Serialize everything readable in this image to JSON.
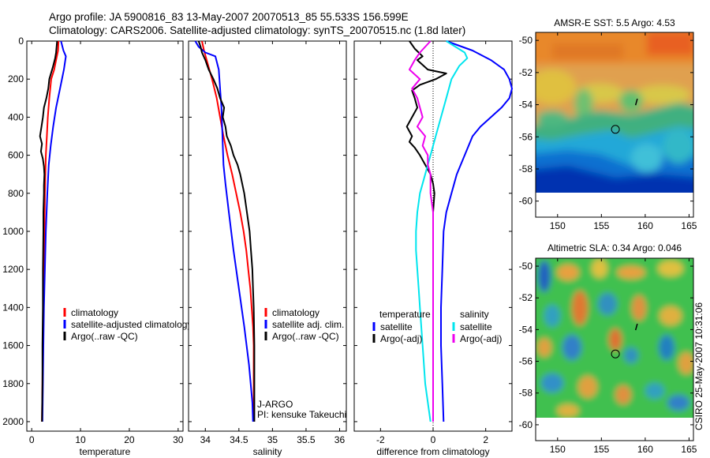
{
  "figure": {
    "title_line1": "Argo profile: JA 5900816_83 13-May-2007 20070513_85 55.533S 156.599E",
    "title_line2": "Climatology: CARS2006. Satellite-adjusted climatology: synTS_20070515.nc (1.8d later)",
    "credit": "CSIRO 25-May-2007 10:31:06",
    "float_info": [
      "J-ARGO",
      "PI: kensuke Takeuchi"
    ]
  },
  "colors": {
    "climatology": "#ff0000",
    "satellite": "#0000ff",
    "argo": "#000000",
    "salinity_satellite": "#00e5ee",
    "salinity_argo": "#ee00ee",
    "dotted_zero": "#000000"
  },
  "chart_data": [
    {
      "id": "temperature",
      "type": "line",
      "xlabel": "temperature",
      "ylabel": "",
      "xlim": [
        -1,
        31
      ],
      "ylim": [
        2050,
        0
      ],
      "xticks": [
        0,
        10,
        20,
        30
      ],
      "xticklabels": [
        "0",
        "10",
        "20",
        "30"
      ],
      "yticks": [
        0,
        200,
        400,
        600,
        800,
        1000,
        1200,
        1400,
        1600,
        1800,
        2000
      ],
      "yticklabels": [
        "0",
        "200",
        "400",
        "600",
        "800",
        "1000",
        "1200",
        "1400",
        "1600",
        "1800",
        "2000"
      ],
      "legend": [
        "climatology",
        "satellite-adjusted climatology",
        "Argo(..raw -QC)"
      ],
      "series": [
        {
          "key": "climatology",
          "points": [
            [
              5.5,
              0
            ],
            [
              5.4,
              50
            ],
            [
              5.0,
              100
            ],
            [
              4.6,
              150
            ],
            [
              4.0,
              200
            ],
            [
              3.6,
              300
            ],
            [
              3.3,
              400
            ],
            [
              3.1,
              500
            ],
            [
              2.9,
              600
            ],
            [
              2.7,
              800
            ],
            [
              2.6,
              1000
            ],
            [
              2.5,
              1200
            ],
            [
              2.4,
              1400
            ],
            [
              2.3,
              1600
            ],
            [
              2.2,
              1800
            ],
            [
              2.1,
              2000
            ]
          ]
        },
        {
          "key": "satellite",
          "points": [
            [
              6.0,
              0
            ],
            [
              6.5,
              50
            ],
            [
              7.0,
              80
            ],
            [
              6.6,
              150
            ],
            [
              5.8,
              250
            ],
            [
              5.0,
              350
            ],
            [
              4.4,
              450
            ],
            [
              3.9,
              550
            ],
            [
              3.5,
              650
            ],
            [
              3.2,
              800
            ],
            [
              2.9,
              1000
            ],
            [
              2.7,
              1200
            ],
            [
              2.5,
              1400
            ],
            [
              2.4,
              1600
            ],
            [
              2.3,
              1800
            ],
            [
              2.2,
              2000
            ]
          ]
        },
        {
          "key": "argo",
          "points": [
            [
              5.2,
              0
            ],
            [
              5.0,
              60
            ],
            [
              4.8,
              90
            ],
            [
              4.3,
              140
            ],
            [
              3.6,
              200
            ],
            [
              3.4,
              250
            ],
            [
              3.0,
              300
            ],
            [
              2.5,
              350
            ],
            [
              2.3,
              400
            ],
            [
              2.0,
              450
            ],
            [
              1.7,
              500
            ],
            [
              2.1,
              540
            ],
            [
              1.9,
              580
            ],
            [
              2.3,
              620
            ],
            [
              2.5,
              660
            ],
            [
              2.6,
              700
            ],
            [
              2.5,
              760
            ],
            [
              2.5,
              800
            ],
            [
              2.4,
              900
            ],
            [
              2.4,
              1000
            ],
            [
              2.3,
              1200
            ],
            [
              2.3,
              1400
            ],
            [
              2.2,
              1600
            ],
            [
              2.2,
              1800
            ],
            [
              2.1,
              2000
            ]
          ]
        }
      ]
    },
    {
      "id": "salinity",
      "type": "line",
      "xlabel": "salinity",
      "ylabel": "",
      "xlim": [
        33.75,
        36.1
      ],
      "ylim": [
        2050,
        0
      ],
      "xticks": [
        34,
        34.5,
        35,
        35.5,
        36
      ],
      "xticklabels": [
        "34",
        "34.5",
        "35",
        "35.5",
        "36"
      ],
      "legend": [
        "climatology",
        "satellite adj. clim.",
        "Argo(..raw -QC)"
      ],
      "series": [
        {
          "key": "climatology",
          "points": [
            [
              33.95,
              0
            ],
            [
              33.98,
              50
            ],
            [
              34.02,
              100
            ],
            [
              34.1,
              200
            ],
            [
              34.17,
              300
            ],
            [
              34.22,
              400
            ],
            [
              34.27,
              500
            ],
            [
              34.33,
              600
            ],
            [
              34.4,
              700
            ],
            [
              34.46,
              800
            ],
            [
              34.52,
              900
            ],
            [
              34.57,
              1000
            ],
            [
              34.61,
              1100
            ],
            [
              34.64,
              1200
            ],
            [
              34.67,
              1300
            ],
            [
              34.69,
              1400
            ],
            [
              34.71,
              1500
            ],
            [
              34.72,
              1600
            ],
            [
              34.72,
              1800
            ],
            [
              34.72,
              2000
            ]
          ]
        },
        {
          "key": "satellite",
          "points": [
            [
              33.85,
              0
            ],
            [
              33.9,
              30
            ],
            [
              34.0,
              60
            ],
            [
              34.15,
              80
            ],
            [
              34.2,
              150
            ],
            [
              34.22,
              250
            ],
            [
              34.24,
              350
            ],
            [
              34.25,
              450
            ],
            [
              34.26,
              550
            ],
            [
              34.27,
              650
            ],
            [
              34.3,
              750
            ],
            [
              34.35,
              900
            ],
            [
              34.42,
              1100
            ],
            [
              34.5,
              1300
            ],
            [
              34.58,
              1500
            ],
            [
              34.65,
              1700
            ],
            [
              34.7,
              1900
            ],
            [
              34.71,
              2000
            ]
          ]
        },
        {
          "key": "argo",
          "points": [
            [
              33.9,
              0
            ],
            [
              33.93,
              30
            ],
            [
              33.95,
              60
            ],
            [
              34.0,
              100
            ],
            [
              34.05,
              150
            ],
            [
              34.12,
              200
            ],
            [
              34.18,
              250
            ],
            [
              34.22,
              300
            ],
            [
              34.28,
              350
            ],
            [
              34.26,
              400
            ],
            [
              34.3,
              450
            ],
            [
              34.32,
              500
            ],
            [
              34.38,
              550
            ],
            [
              34.42,
              600
            ],
            [
              34.48,
              650
            ],
            [
              34.52,
              700
            ],
            [
              34.58,
              800
            ],
            [
              34.62,
              900
            ],
            [
              34.66,
              1000
            ],
            [
              34.68,
              1100
            ],
            [
              34.7,
              1200
            ],
            [
              34.71,
              1300
            ],
            [
              34.72,
              1400
            ],
            [
              34.73,
              1600
            ],
            [
              34.73,
              1800
            ],
            [
              34.73,
              2000
            ]
          ]
        }
      ]
    },
    {
      "id": "difference",
      "type": "line",
      "xlabel": "difference from climatology",
      "ylabel": "",
      "xlim": [
        -3,
        3
      ],
      "ylim": [
        2050,
        0
      ],
      "xticks": [
        -2,
        0,
        2
      ],
      "xticklabels": [
        "-2",
        "0",
        "2"
      ],
      "legend_headers": [
        "temperature",
        "salinity"
      ],
      "legend": [
        "satellite",
        "Argo(-adj)",
        "satellite",
        "Argo(-adj)"
      ],
      "series": [
        {
          "key": "temperature_satellite",
          "points": [
            [
              0.5,
              0
            ],
            [
              1.5,
              50
            ],
            [
              2.2,
              100
            ],
            [
              2.7,
              150
            ],
            [
              2.9,
              200
            ],
            [
              3.0,
              250
            ],
            [
              2.9,
              300
            ],
            [
              2.6,
              350
            ],
            [
              2.2,
              400
            ],
            [
              1.8,
              450
            ],
            [
              1.5,
              500
            ],
            [
              1.2,
              600
            ],
            [
              0.9,
              700
            ],
            [
              0.7,
              800
            ],
            [
              0.5,
              900
            ],
            [
              0.4,
              1000
            ],
            [
              0.35,
              1200
            ],
            [
              0.3,
              1400
            ],
            [
              0.3,
              1600
            ],
            [
              0.35,
              1800
            ],
            [
              0.4,
              2000
            ]
          ]
        },
        {
          "key": "temperature_argo",
          "points": [
            [
              -0.9,
              0
            ],
            [
              -0.7,
              40
            ],
            [
              -0.4,
              80
            ],
            [
              -0.6,
              100
            ],
            [
              -0.2,
              150
            ],
            [
              0.5,
              170
            ],
            [
              0.1,
              200
            ],
            [
              -0.5,
              230
            ],
            [
              -0.8,
              260
            ],
            [
              -0.7,
              300
            ],
            [
              -0.6,
              350
            ],
            [
              -0.8,
              400
            ],
            [
              -1.0,
              450
            ],
            [
              -0.8,
              500
            ],
            [
              -0.9,
              530
            ],
            [
              -0.7,
              560
            ],
            [
              -0.5,
              600
            ],
            [
              -0.3,
              650
            ],
            [
              -0.1,
              700
            ],
            [
              0.0,
              750
            ],
            [
              0.05,
              800
            ],
            [
              0.0,
              900
            ],
            [
              0.0,
              1000
            ],
            [
              0.0,
              1200
            ],
            [
              0.0,
              1400
            ],
            [
              0.0,
              1600
            ],
            [
              0.0,
              1800
            ],
            [
              0.0,
              2000
            ]
          ]
        },
        {
          "key": "salinity_satellite",
          "points": [
            [
              0.5,
              0
            ],
            [
              1.2,
              60
            ],
            [
              1.3,
              90
            ],
            [
              1.0,
              130
            ],
            [
              0.7,
              200
            ],
            [
              0.5,
              300
            ],
            [
              0.3,
              400
            ],
            [
              0.1,
              500
            ],
            [
              -0.1,
              600
            ],
            [
              -0.3,
              700
            ],
            [
              -0.5,
              800
            ],
            [
              -0.6,
              900
            ],
            [
              -0.65,
              1000
            ],
            [
              -0.65,
              1100
            ],
            [
              -0.6,
              1200
            ],
            [
              -0.55,
              1300
            ],
            [
              -0.5,
              1400
            ],
            [
              -0.4,
              1600
            ],
            [
              -0.3,
              1800
            ],
            [
              -0.1,
              2000
            ]
          ]
        },
        {
          "key": "salinity_argo",
          "points": [
            [
              -0.1,
              0
            ],
            [
              -0.5,
              60
            ],
            [
              -0.7,
              100
            ],
            [
              -0.9,
              150
            ],
            [
              -0.5,
              200
            ],
            [
              -0.8,
              250
            ],
            [
              -0.6,
              300
            ],
            [
              -0.5,
              350
            ],
            [
              -0.4,
              400
            ],
            [
              -0.6,
              450
            ],
            [
              -0.3,
              500
            ],
            [
              -0.4,
              550
            ],
            [
              -0.2,
              600
            ],
            [
              -0.2,
              650
            ],
            [
              -0.1,
              700
            ],
            [
              -0.1,
              800
            ],
            [
              0.0,
              900
            ],
            [
              0.0,
              1000
            ],
            [
              0.0,
              1200
            ],
            [
              0.0,
              1400
            ],
            [
              0.0,
              1600
            ],
            [
              0.0,
              1800
            ],
            [
              0.0,
              2000
            ]
          ]
        }
      ]
    },
    {
      "id": "sst_map",
      "type": "heatmap",
      "title": "AMSR-E SST: 5.5 Argo: 4.53",
      "xlim": [
        147.5,
        165.5
      ],
      "ylim": [
        -61,
        -49.5
      ],
      "xticks": [
        150,
        155,
        160,
        165
      ],
      "xticklabels": [
        "150",
        "155",
        "160",
        "165"
      ],
      "yticks": [
        -50,
        -52,
        -54,
        -56,
        -58,
        -60
      ],
      "yticklabels": [
        "-50",
        "-52",
        "-54",
        "-56",
        "-58",
        "-60"
      ],
      "marker": {
        "lon": 156.599,
        "lat": -55.533
      },
      "data_extent": {
        "lon": [
          147.5,
          165.5
        ],
        "lat": [
          -60,
          -49.5
        ]
      }
    },
    {
      "id": "sla_map",
      "type": "heatmap",
      "title": "Altimetric SLA: 0.34 Argo: 0.046",
      "xlim": [
        147.5,
        165.5
      ],
      "ylim": [
        -61,
        -49.5
      ],
      "xticks": [
        150,
        155,
        160,
        165
      ],
      "xticklabels": [
        "150",
        "155",
        "160",
        "165"
      ],
      "yticks": [
        -50,
        -52,
        -54,
        -56,
        -58,
        -60
      ],
      "yticklabels": [
        "-50",
        "-52",
        "-54",
        "-56",
        "-58",
        "-60"
      ],
      "marker": {
        "lon": 156.599,
        "lat": -55.533
      },
      "data_extent": {
        "lon": [
          147.5,
          165.5
        ],
        "lat": [
          -60,
          -49.5
        ]
      }
    }
  ]
}
